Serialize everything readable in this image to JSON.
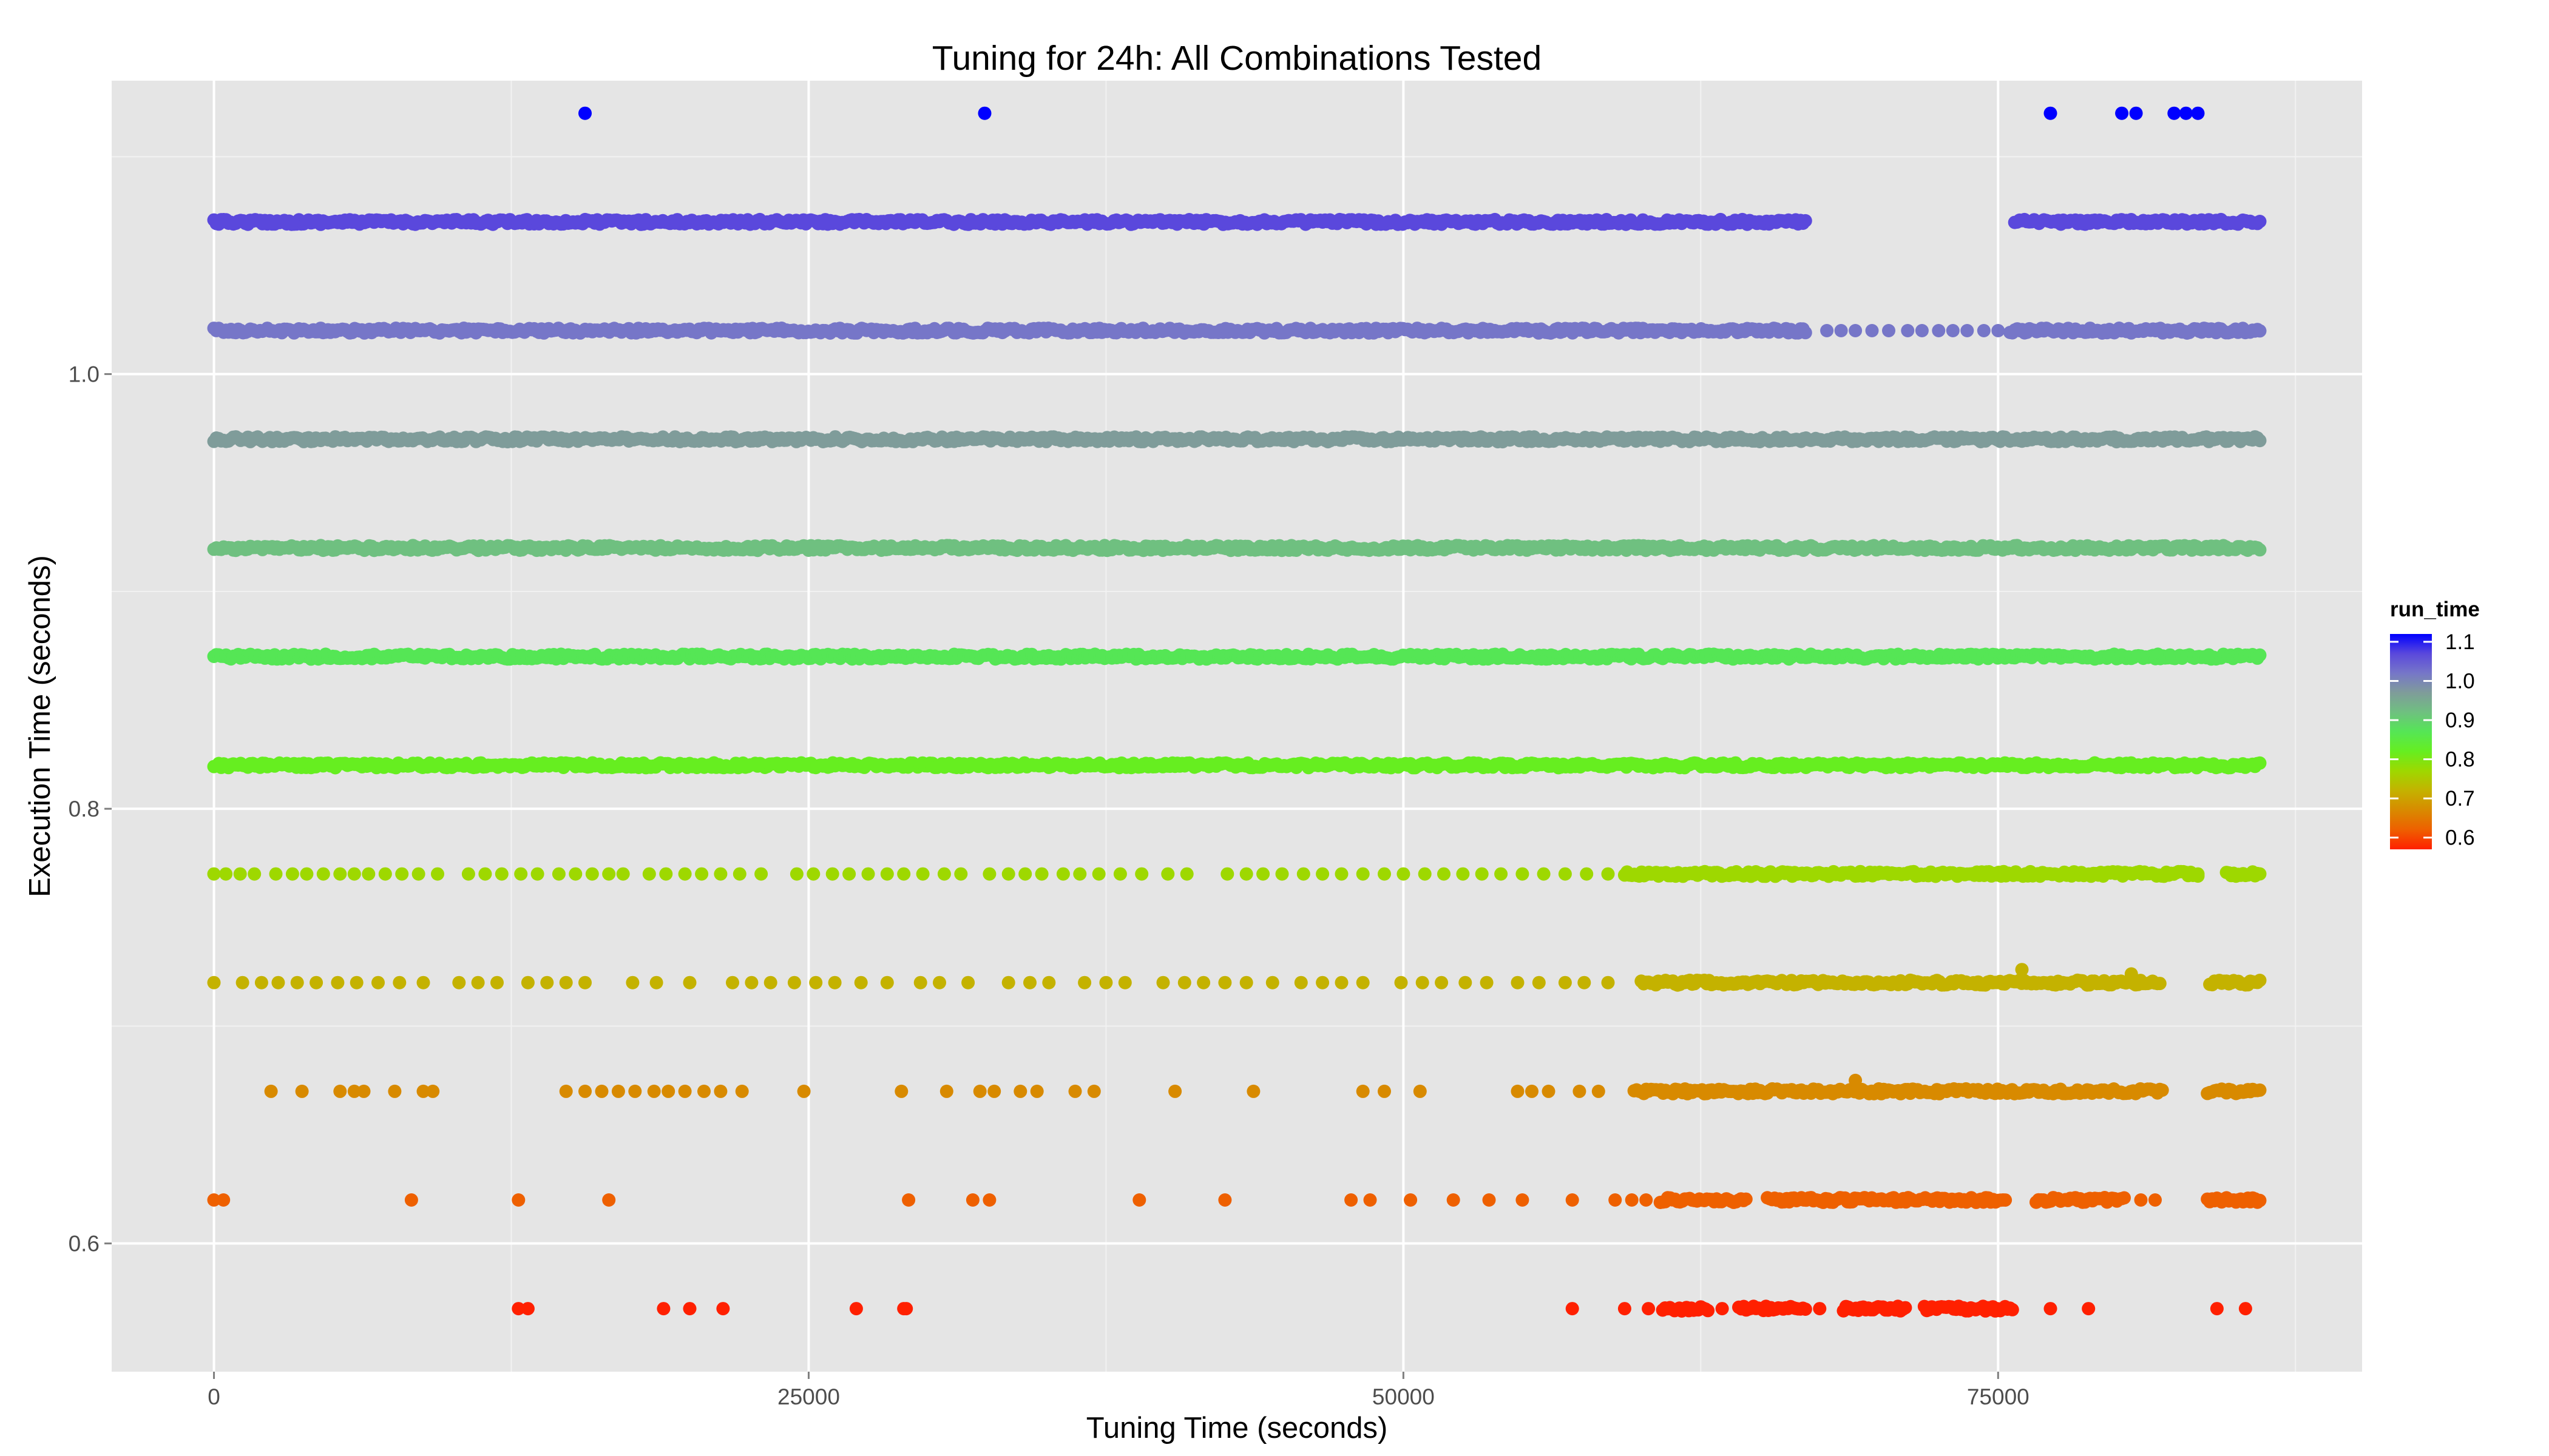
{
  "chart_data": {
    "type": "scatter",
    "title": "Tuning for 24h: All Combinations Tested",
    "xlabel": "Tuning Time (seconds)",
    "ylabel": "Execution Time (seconds)",
    "xlim": [
      -4300,
      90300
    ],
    "ylim": [
      0.541,
      1.135
    ],
    "xticks": [
      0,
      25000,
      50000,
      75000
    ],
    "xtick_labels": [
      "0",
      "25000",
      "50000",
      "75000"
    ],
    "yticks": [
      0.6,
      0.8,
      1.0
    ],
    "ytick_labels": [
      "0.6",
      "0.8",
      "1.0"
    ],
    "grid": true,
    "legend": {
      "title": "run_time",
      "position": "right",
      "colorbar_min": 0.57,
      "colorbar_max": 1.12,
      "entries": [
        {
          "label": "1.1",
          "value": 1.1
        },
        {
          "label": "1.0",
          "value": 1.0
        },
        {
          "label": "0.9",
          "value": 0.9
        },
        {
          "label": "0.8",
          "value": 0.8
        },
        {
          "label": "0.7",
          "value": 0.7
        },
        {
          "label": "0.6",
          "value": 0.6
        }
      ]
    },
    "colorscale": [
      {
        "value": 0.57,
        "color": "#ff2000"
      },
      {
        "value": 0.62,
        "color": "#ee6000"
      },
      {
        "value": 0.67,
        "color": "#d88a00"
      },
      {
        "value": 0.72,
        "color": "#c4b200"
      },
      {
        "value": 0.77,
        "color": "#9ed800"
      },
      {
        "value": 0.82,
        "color": "#66ee20"
      },
      {
        "value": 0.87,
        "color": "#55e655"
      },
      {
        "value": 0.92,
        "color": "#6fc080"
      },
      {
        "value": 0.97,
        "color": "#7f9c9a"
      },
      {
        "value": 1.02,
        "color": "#7676c8"
      },
      {
        "value": 1.07,
        "color": "#5a48dc"
      },
      {
        "value": 1.12,
        "color": "#0000ff"
      }
    ],
    "series": [
      {
        "run_time": 1.12,
        "points": [
          [
            15600,
            1.12
          ],
          [
            32400,
            1.12
          ],
          [
            77200,
            1.12
          ],
          [
            80200,
            1.12
          ],
          [
            80800,
            1.12
          ],
          [
            82400,
            1.12
          ],
          [
            82900,
            1.12
          ],
          [
            83400,
            1.12
          ]
        ]
      },
      {
        "run_time": 1.07,
        "segments": [
          [
            0,
            66900
          ],
          [
            75700,
            86000
          ]
        ]
      },
      {
        "run_time": 1.02,
        "segments": [
          [
            0,
            66900
          ],
          [
            75500,
            86000
          ]
        ],
        "points": [
          [
            67800,
            1.02
          ],
          [
            68400,
            1.02
          ],
          [
            69000,
            1.02
          ],
          [
            69700,
            1.02
          ],
          [
            70400,
            1.02
          ],
          [
            71200,
            1.02
          ],
          [
            71800,
            1.02
          ],
          [
            72500,
            1.02
          ],
          [
            73100,
            1.02
          ],
          [
            73700,
            1.02
          ],
          [
            74400,
            1.02
          ],
          [
            75000,
            1.02
          ]
        ]
      },
      {
        "run_time": 0.97,
        "segments": [
          [
            0,
            86000
          ]
        ]
      },
      {
        "run_time": 0.92,
        "segments": [
          [
            0,
            86000
          ]
        ]
      },
      {
        "run_time": 0.87,
        "segments": [
          [
            0,
            86000
          ]
        ]
      },
      {
        "run_time": 0.82,
        "segments": [
          [
            0,
            86000
          ]
        ]
      },
      {
        "run_time": 0.77,
        "segments": [
          [
            59300,
            83400
          ],
          [
            84600,
            86000
          ]
        ],
        "points": [
          [
            0,
            0.77
          ],
          [
            500,
            0.77
          ],
          [
            1100,
            0.77
          ],
          [
            1700,
            0.77
          ],
          [
            2600,
            0.77
          ],
          [
            3300,
            0.77
          ],
          [
            3900,
            0.77
          ],
          [
            4600,
            0.77
          ],
          [
            5300,
            0.77
          ],
          [
            5900,
            0.77
          ],
          [
            6500,
            0.77
          ],
          [
            7200,
            0.77
          ],
          [
            7900,
            0.77
          ],
          [
            8600,
            0.77
          ],
          [
            9400,
            0.77
          ],
          [
            10700,
            0.77
          ],
          [
            11400,
            0.77
          ],
          [
            12100,
            0.77
          ],
          [
            12900,
            0.77
          ],
          [
            13600,
            0.77
          ],
          [
            14500,
            0.77
          ],
          [
            15200,
            0.77
          ],
          [
            15900,
            0.77
          ],
          [
            16600,
            0.77
          ],
          [
            17200,
            0.77
          ],
          [
            18300,
            0.77
          ],
          [
            19000,
            0.77
          ],
          [
            19800,
            0.77
          ],
          [
            20500,
            0.77
          ],
          [
            21300,
            0.77
          ],
          [
            22100,
            0.77
          ],
          [
            23000,
            0.77
          ],
          [
            24500,
            0.77
          ],
          [
            25200,
            0.77
          ],
          [
            26000,
            0.77
          ],
          [
            26700,
            0.77
          ],
          [
            27500,
            0.77
          ],
          [
            28300,
            0.77
          ],
          [
            29000,
            0.77
          ],
          [
            29800,
            0.77
          ],
          [
            30700,
            0.77
          ],
          [
            31400,
            0.77
          ],
          [
            32600,
            0.77
          ],
          [
            33400,
            0.77
          ],
          [
            34100,
            0.77
          ],
          [
            34800,
            0.77
          ],
          [
            35700,
            0.77
          ],
          [
            36400,
            0.77
          ],
          [
            37200,
            0.77
          ],
          [
            38100,
            0.77
          ],
          [
            39000,
            0.77
          ],
          [
            40100,
            0.77
          ],
          [
            40900,
            0.77
          ],
          [
            42600,
            0.77
          ],
          [
            43400,
            0.77
          ],
          [
            44100,
            0.77
          ],
          [
            44900,
            0.77
          ],
          [
            45800,
            0.77
          ],
          [
            46600,
            0.77
          ],
          [
            47400,
            0.77
          ],
          [
            48300,
            0.77
          ],
          [
            49200,
            0.77
          ],
          [
            50000,
            0.77
          ],
          [
            50900,
            0.77
          ],
          [
            51700,
            0.77
          ],
          [
            52500,
            0.77
          ],
          [
            53300,
            0.77
          ],
          [
            54100,
            0.77
          ],
          [
            55000,
            0.77
          ],
          [
            55900,
            0.77
          ],
          [
            56800,
            0.77
          ],
          [
            57700,
            0.77
          ],
          [
            58600,
            0.77
          ],
          [
            83400,
            0.77
          ]
        ]
      },
      {
        "run_time": 0.72,
        "segments": [
          [
            60000,
            81800
          ],
          [
            83900,
            86000
          ]
        ],
        "points": [
          [
            0,
            0.72
          ],
          [
            1200,
            0.72
          ],
          [
            2000,
            0.72
          ],
          [
            2700,
            0.72
          ],
          [
            3500,
            0.72
          ],
          [
            4300,
            0.72
          ],
          [
            5200,
            0.72
          ],
          [
            6000,
            0.72
          ],
          [
            6900,
            0.72
          ],
          [
            7800,
            0.72
          ],
          [
            8800,
            0.72
          ],
          [
            10300,
            0.72
          ],
          [
            11100,
            0.72
          ],
          [
            11900,
            0.72
          ],
          [
            13200,
            0.72
          ],
          [
            14000,
            0.72
          ],
          [
            14800,
            0.72
          ],
          [
            15600,
            0.72
          ],
          [
            17600,
            0.72
          ],
          [
            18600,
            0.72
          ],
          [
            20000,
            0.72
          ],
          [
            21800,
            0.72
          ],
          [
            22600,
            0.72
          ],
          [
            23400,
            0.72
          ],
          [
            24400,
            0.72
          ],
          [
            25300,
            0.72
          ],
          [
            26100,
            0.72
          ],
          [
            27200,
            0.72
          ],
          [
            28300,
            0.72
          ],
          [
            29700,
            0.72
          ],
          [
            30500,
            0.72
          ],
          [
            31700,
            0.72
          ],
          [
            33400,
            0.72
          ],
          [
            34300,
            0.72
          ],
          [
            35100,
            0.72
          ],
          [
            36600,
            0.72
          ],
          [
            37500,
            0.72
          ],
          [
            38300,
            0.72
          ],
          [
            39900,
            0.72
          ],
          [
            40800,
            0.72
          ],
          [
            41600,
            0.72
          ],
          [
            42500,
            0.72
          ],
          [
            43400,
            0.72
          ],
          [
            44500,
            0.72
          ],
          [
            45700,
            0.72
          ],
          [
            46600,
            0.72
          ],
          [
            47400,
            0.72
          ],
          [
            48300,
            0.72
          ],
          [
            49900,
            0.72
          ],
          [
            50800,
            0.72
          ],
          [
            51600,
            0.72
          ],
          [
            52600,
            0.72
          ],
          [
            53500,
            0.72
          ],
          [
            54800,
            0.72
          ],
          [
            55700,
            0.72
          ],
          [
            56800,
            0.72
          ],
          [
            57600,
            0.72
          ],
          [
            58600,
            0.72
          ],
          [
            76000,
            0.726
          ],
          [
            80600,
            0.724
          ]
        ]
      },
      {
        "run_time": 0.67,
        "segments": [
          [
            59700,
            81900
          ],
          [
            83800,
            86000
          ]
        ],
        "points": [
          [
            2400,
            0.67
          ],
          [
            3700,
            0.67
          ],
          [
            5300,
            0.67
          ],
          [
            5900,
            0.67
          ],
          [
            6300,
            0.67
          ],
          [
            7600,
            0.67
          ],
          [
            8800,
            0.67
          ],
          [
            9200,
            0.67
          ],
          [
            14800,
            0.67
          ],
          [
            15600,
            0.67
          ],
          [
            16300,
            0.67
          ],
          [
            17000,
            0.67
          ],
          [
            17700,
            0.67
          ],
          [
            18500,
            0.67
          ],
          [
            19100,
            0.67
          ],
          [
            19800,
            0.67
          ],
          [
            20600,
            0.67
          ],
          [
            21300,
            0.67
          ],
          [
            22200,
            0.67
          ],
          [
            24800,
            0.67
          ],
          [
            28900,
            0.67
          ],
          [
            30800,
            0.67
          ],
          [
            32200,
            0.67
          ],
          [
            32800,
            0.67
          ],
          [
            33900,
            0.67
          ],
          [
            34600,
            0.67
          ],
          [
            36200,
            0.67
          ],
          [
            37000,
            0.67
          ],
          [
            40400,
            0.67
          ],
          [
            43700,
            0.67
          ],
          [
            48300,
            0.67
          ],
          [
            49200,
            0.67
          ],
          [
            50700,
            0.67
          ],
          [
            54800,
            0.67
          ],
          [
            55400,
            0.67
          ],
          [
            56100,
            0.67
          ],
          [
            57400,
            0.67
          ],
          [
            58200,
            0.67
          ],
          [
            69000,
            0.675
          ]
        ]
      },
      {
        "run_time": 0.62,
        "segments": [
          [
            60800,
            64400
          ],
          [
            65300,
            75300
          ],
          [
            76600,
            80300
          ],
          [
            83800,
            86000
          ]
        ],
        "points": [
          [
            0,
            0.62
          ],
          [
            400,
            0.62
          ],
          [
            8300,
            0.62
          ],
          [
            12800,
            0.62
          ],
          [
            16600,
            0.62
          ],
          [
            29200,
            0.62
          ],
          [
            31900,
            0.62
          ],
          [
            32600,
            0.62
          ],
          [
            38900,
            0.62
          ],
          [
            42500,
            0.62
          ],
          [
            47800,
            0.62
          ],
          [
            48600,
            0.62
          ],
          [
            50300,
            0.62
          ],
          [
            52100,
            0.62
          ],
          [
            53600,
            0.62
          ],
          [
            55000,
            0.62
          ],
          [
            57100,
            0.62
          ],
          [
            58900,
            0.62
          ],
          [
            59600,
            0.62
          ],
          [
            60200,
            0.62
          ],
          [
            81000,
            0.62
          ],
          [
            81600,
            0.62
          ]
        ]
      },
      {
        "run_time": 0.57,
        "segments": [
          [
            60900,
            62800
          ],
          [
            64100,
            66900
          ],
          [
            68500,
            71100
          ],
          [
            71900,
            75600
          ]
        ],
        "points": [
          [
            12800,
            0.57
          ],
          [
            13200,
            0.57
          ],
          [
            18900,
            0.57
          ],
          [
            20000,
            0.57
          ],
          [
            21400,
            0.57
          ],
          [
            27000,
            0.57
          ],
          [
            29000,
            0.57
          ],
          [
            29100,
            0.57
          ],
          [
            57100,
            0.57
          ],
          [
            59300,
            0.57
          ],
          [
            60300,
            0.57
          ],
          [
            63400,
            0.57
          ],
          [
            67500,
            0.57
          ],
          [
            77200,
            0.57
          ],
          [
            78800,
            0.57
          ],
          [
            84200,
            0.57
          ],
          [
            85400,
            0.57
          ]
        ]
      }
    ]
  }
}
